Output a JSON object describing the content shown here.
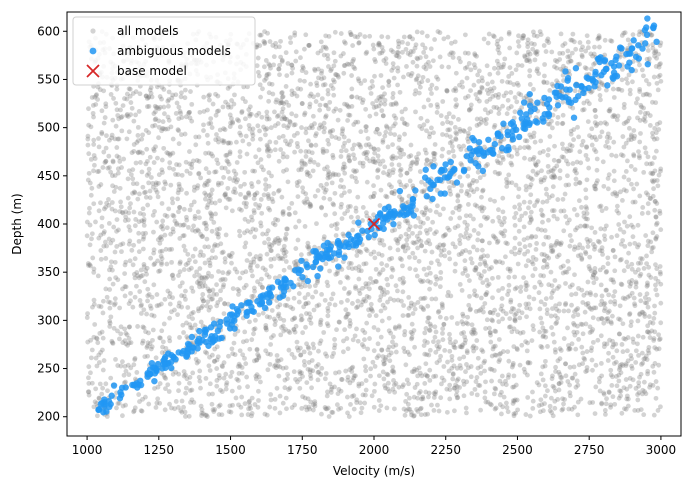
{
  "chart_data": {
    "type": "scatter",
    "title": "",
    "xlabel": "Velocity (m/s)",
    "ylabel": "Depth (m)",
    "xlim": [
      930,
      3070
    ],
    "ylim": [
      180,
      620
    ],
    "xticks": [
      1000,
      1250,
      1500,
      1750,
      2000,
      2250,
      2500,
      2750,
      3000
    ],
    "yticks": [
      200,
      250,
      300,
      350,
      400,
      450,
      500,
      550,
      600
    ],
    "grid": false,
    "legend": "upper-left",
    "series": [
      {
        "name": "all models",
        "marker": "circle",
        "color": "#808080",
        "opacity": 0.35,
        "x_range": [
          1000,
          3000
        ],
        "y_range": [
          200,
          600
        ],
        "count": 5000
      },
      {
        "name": "ambiguous models",
        "marker": "circle",
        "color": "#2196F3",
        "opacity": 0.85,
        "relation": "y ≈ 400 * x / 2000",
        "x_range": [
          1020,
          3000
        ],
        "count": 450
      },
      {
        "name": "base model",
        "marker": "x",
        "color": "#d62728",
        "points": [
          {
            "x": 2000,
            "y": 400
          }
        ]
      }
    ]
  }
}
